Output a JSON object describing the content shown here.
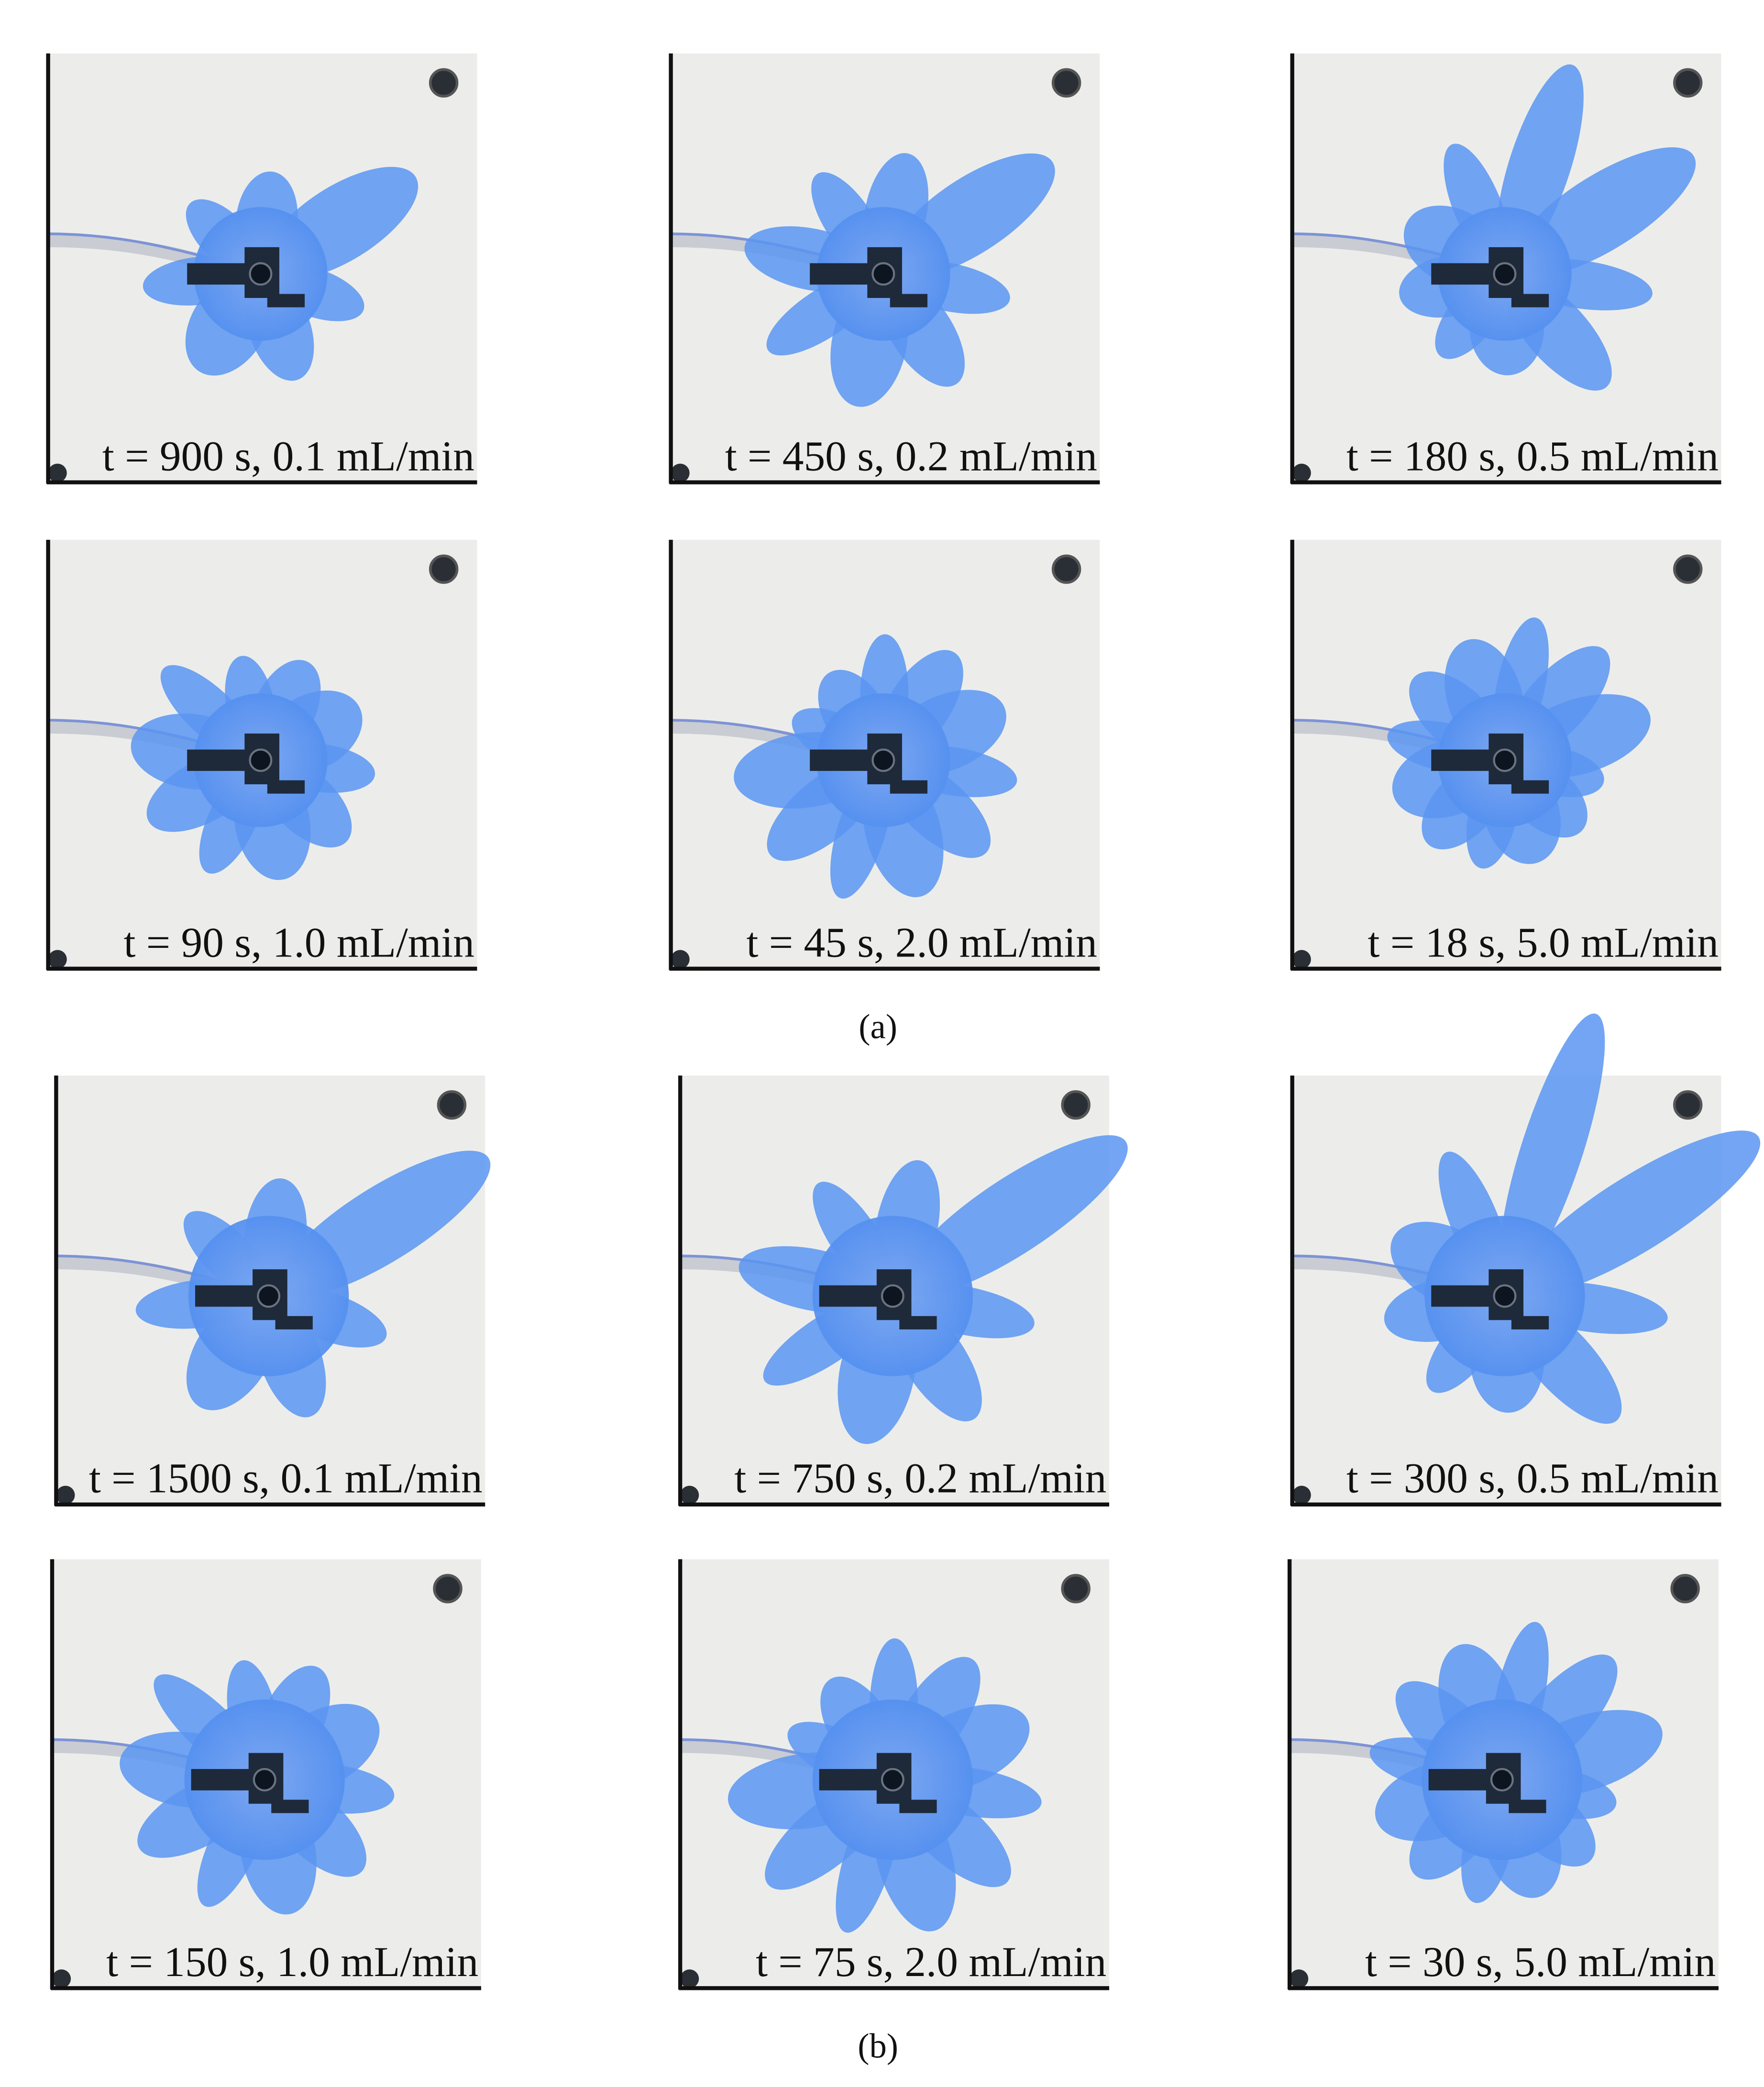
{
  "panels": [
    {
      "label": "(a)",
      "images": [
        {
          "caption": "t = 900 s, 0.1 mL/min"
        },
        {
          "caption": "t = 450 s, 0.2 mL/min"
        },
        {
          "caption": "t = 180 s, 0.5 mL/min"
        },
        {
          "caption": "t = 90 s, 1.0 mL/min"
        },
        {
          "caption": "t = 45 s, 2.0 mL/min"
        },
        {
          "caption": "t = 18 s, 5.0 mL/min"
        }
      ]
    },
    {
      "label": "(b)",
      "images": [
        {
          "caption": "t = 1500 s, 0.1 mL/min"
        },
        {
          "caption": "t = 750 s, 0.2 mL/min"
        },
        {
          "caption": "t = 300 s, 0.5 mL/min"
        },
        {
          "caption": "t = 150 s, 1.0 mL/min"
        },
        {
          "caption": "t = 75 s, 2.0 mL/min"
        },
        {
          "caption": "t = 30 s, 5.0 mL/min"
        }
      ]
    }
  ]
}
